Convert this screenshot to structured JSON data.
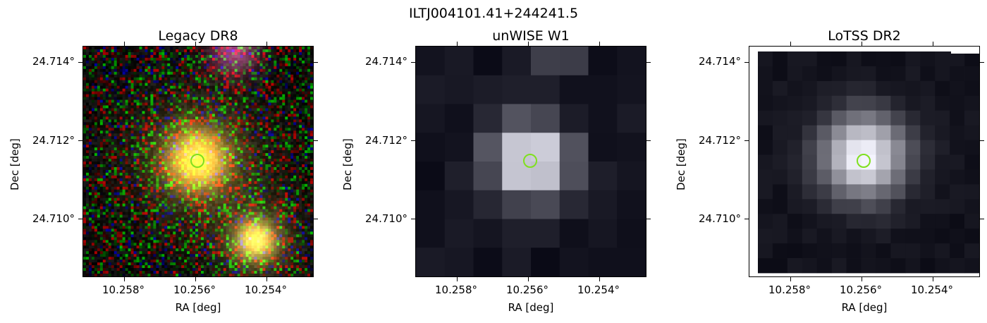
{
  "title": "ILTJ004101.41+244241.5",
  "panels": [
    {
      "title": "Legacy DR8",
      "xlabel": "RA [deg]",
      "ylabel": "Dec [deg]",
      "xticks": [
        "10.258°",
        "10.256°",
        "10.254°"
      ],
      "yticks": [
        "24.714°",
        "24.712°",
        "24.710°"
      ],
      "image": "legacy-rgb-cutout"
    },
    {
      "title": "unWISE W1",
      "xlabel": "RA [deg]",
      "ylabel": "Dec [deg]",
      "xticks": [
        "10.258°",
        "10.256°",
        "10.254°"
      ],
      "yticks": [
        "24.714°",
        "24.712°",
        "24.710°"
      ],
      "image": "unwise-grayscale-cutout"
    },
    {
      "title": "LoTSS DR2",
      "xlabel": "RA [deg]",
      "ylabel": "Dec [deg]",
      "xticks": [
        "10.258°",
        "10.256°",
        "10.254°"
      ],
      "yticks": [
        "24.714°",
        "24.712°",
        "24.710°"
      ],
      "image": "lotss-grayscale-cutout"
    }
  ],
  "marker_color": "#7fe01e"
}
